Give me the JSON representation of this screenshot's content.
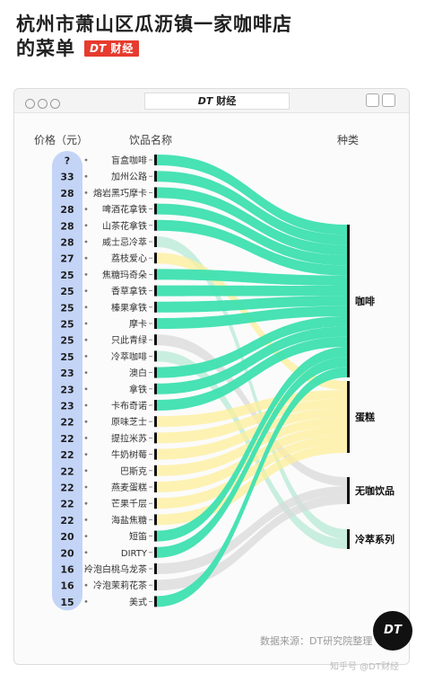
{
  "title_line1": "杭州市萧山区瓜沥镇一家咖啡店",
  "title_line2": "的菜单",
  "badge": {
    "brand": "DT",
    "name": "财经"
  },
  "window_title": {
    "brand": "DT",
    "name": "财经"
  },
  "headers": {
    "price": "价格（元）",
    "name": "饮品名称",
    "category": "种类"
  },
  "source": "数据来源：DT研究院整理",
  "logo": "DT",
  "watermark": "知乎号 @DT财经",
  "colors": {
    "coffee": "#3ee0b0",
    "latte": "#fdef9a",
    "nocoffee": "#d9d9d9",
    "coldbrew": "#b7e9d6",
    "bubble": "#b9cdf6",
    "badge": "#e63b2e"
  },
  "chart_data": {
    "type": "sankey",
    "drinks": [
      {
        "price": "?",
        "name": "盲盒咖啡",
        "category": "咖啡"
      },
      {
        "price": "33",
        "name": "加州公路",
        "category": "咖啡"
      },
      {
        "price": "28",
        "name": "熔岩黑巧摩卡",
        "category": "咖啡"
      },
      {
        "price": "28",
        "name": "啤酒花拿铁",
        "category": "咖啡"
      },
      {
        "price": "28",
        "name": "山茶花拿铁",
        "category": "咖啡"
      },
      {
        "price": "28",
        "name": "威士忌冷萃",
        "category": "冷萃系列"
      },
      {
        "price": "27",
        "name": "荔枝爱心",
        "category": "蛋糕"
      },
      {
        "price": "25",
        "name": "焦糖玛奇朵",
        "category": "咖啡"
      },
      {
        "price": "25",
        "name": "香草拿铁",
        "category": "咖啡"
      },
      {
        "price": "25",
        "name": "榛果拿铁",
        "category": "咖啡"
      },
      {
        "price": "25",
        "name": "摩卡",
        "category": "咖啡"
      },
      {
        "price": "25",
        "name": "只此青绿",
        "category": "无咖饮品"
      },
      {
        "price": "25",
        "name": "冷萃咖啡",
        "category": "冷萃系列"
      },
      {
        "price": "23",
        "name": "澳白",
        "category": "咖啡"
      },
      {
        "price": "23",
        "name": "拿铁",
        "category": "咖啡"
      },
      {
        "price": "23",
        "name": "卡布奇诺",
        "category": "咖啡"
      },
      {
        "price": "22",
        "name": "原味芝士",
        "category": "蛋糕"
      },
      {
        "price": "22",
        "name": "提拉米苏",
        "category": "蛋糕"
      },
      {
        "price": "22",
        "name": "牛奶树莓",
        "category": "蛋糕"
      },
      {
        "price": "22",
        "name": "巴斯克",
        "category": "蛋糕"
      },
      {
        "price": "22",
        "name": "燕麦蛋糕",
        "category": "蛋糕"
      },
      {
        "price": "22",
        "name": "芒果千层",
        "category": "蛋糕"
      },
      {
        "price": "22",
        "name": "海盐焦糖",
        "category": "蛋糕"
      },
      {
        "price": "20",
        "name": "短笛",
        "category": "咖啡"
      },
      {
        "price": "20",
        "name": "DIRTY",
        "category": "咖啡"
      },
      {
        "price": "16",
        "name": "冷泡白桃乌龙茶",
        "category": "无咖饮品"
      },
      {
        "price": "16",
        "name": "冷泡茉莉花茶",
        "category": "无咖饮品"
      },
      {
        "price": "15",
        "name": "美式",
        "category": "咖啡"
      }
    ],
    "categories": [
      {
        "name": "咖啡",
        "count": 15,
        "color": "#3ee0b0"
      },
      {
        "name": "蛋糕",
        "count": 8,
        "color": "#fdef9a"
      },
      {
        "name": "无咖饮品",
        "count": 3,
        "color": "#d9d9d9"
      },
      {
        "name": "冷萃系列",
        "count": 2,
        "color": "#b7e9d6"
      }
    ]
  }
}
